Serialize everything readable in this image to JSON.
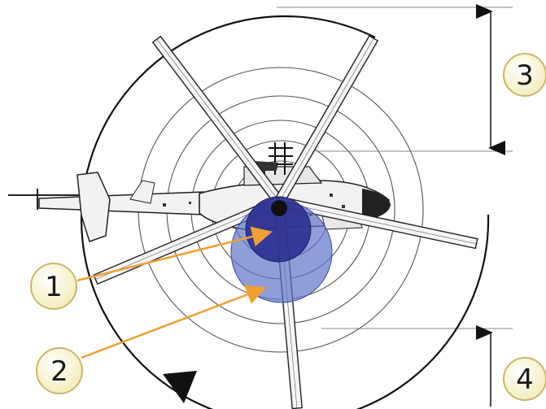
{
  "diagram": {
    "callouts": [
      {
        "label": "1"
      },
      {
        "label": "2"
      },
      {
        "label": "3"
      },
      {
        "label": "4"
      }
    ],
    "colors": {
      "background": "#ffffff",
      "rings": "#555555",
      "outer_circle": "#111111",
      "rotor_blade_fill": "#f4f4f4",
      "rotor_blade_outline": "#222222",
      "fuselage": "#f2f2f2",
      "disc_inner": "#2b2f8f",
      "disc_outer": "#5f74c9",
      "arrow": "#f0a030",
      "callout_fill": "#fbf7d2",
      "callout_stroke": "#c9b86a",
      "dimension_arrow": "#111111"
    },
    "icons": [
      "helicopter-top-view-icon",
      "rotation-direction-arrow-icon",
      "dimension-arrow-icon"
    ]
  }
}
